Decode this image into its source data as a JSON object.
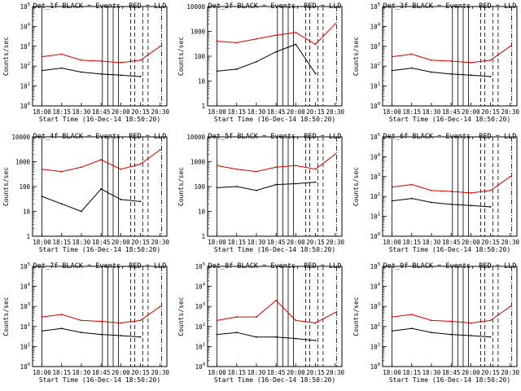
{
  "figure": {
    "date": "16-Dec-14",
    "reference_time": "18:50:20",
    "xlabel_prefix": "Start Time",
    "ylabel": "Counts/sec",
    "x_ticks": [
      "18:00",
      "18:15",
      "18:30",
      "18:45",
      "20:00",
      "20:15",
      "20:30"
    ],
    "colors": {
      "events": "#000000",
      "lld": "#d40000",
      "axes": "#000000",
      "background": "#ffffff"
    },
    "vertical_markers": {
      "solid_at_fraction": [
        0.07,
        0.52,
        0.56,
        0.6,
        0.64
      ],
      "dashed_at_fraction": [
        0.73,
        0.76,
        0.82,
        0.86
      ],
      "dashdot_at_fraction": [
        0.96
      ]
    }
  },
  "chart_data": [
    {
      "type": "line",
      "panel": "Det_1f",
      "title": "Det_1f BLACK = Events, RED = LLD",
      "xlabel": "Start Time (16-Dec-14 18:50:20)",
      "ylabel": "Counts/sec",
      "yscale": "log",
      "ylim": [
        1,
        100000
      ],
      "ytick_style": "power",
      "x": [
        "18:00",
        "18:15",
        "18:30",
        "18:45",
        "20:00",
        "20:15",
        "20:30"
      ],
      "series": [
        {
          "name": "BLACK = Events",
          "color": "#000000",
          "values": [
            60,
            80,
            50,
            40,
            35,
            30,
            null
          ]
        },
        {
          "name": "RED = LLD",
          "color": "#d40000",
          "values": [
            300,
            400,
            200,
            180,
            150,
            200,
            1000
          ]
        }
      ]
    },
    {
      "type": "line",
      "panel": "Det_2f",
      "title": "Det_2f BLACK = Events, RED = LLD",
      "xlabel": "Start Time (16-Dec-14 18:50:20)",
      "ylabel": "Counts/sec",
      "yscale": "log",
      "ylim": [
        1,
        10000
      ],
      "ytick_style": "plain",
      "x": [
        "18:00",
        "18:15",
        "18:30",
        "18:45",
        "20:00",
        "20:15",
        "20:30"
      ],
      "series": [
        {
          "name": "BLACK = Events",
          "color": "#000000",
          "values": [
            25,
            30,
            60,
            150,
            300,
            20,
            null
          ]
        },
        {
          "name": "RED = LLD",
          "color": "#d40000",
          "values": [
            400,
            350,
            500,
            700,
            900,
            300,
            2000
          ]
        }
      ]
    },
    {
      "type": "line",
      "panel": "Det_3f",
      "title": "Det_3f BLACK = Events, RED = LLD",
      "xlabel": "Start Time (16-Dec-14 18:50:20)",
      "ylabel": "Counts/sec",
      "yscale": "log",
      "ylim": [
        1,
        100000
      ],
      "ytick_style": "power",
      "x": [
        "18:00",
        "18:15",
        "18:30",
        "18:45",
        "20:00",
        "20:15",
        "20:30"
      ],
      "series": [
        {
          "name": "BLACK = Events",
          "color": "#000000",
          "values": [
            60,
            80,
            50,
            40,
            35,
            30,
            null
          ]
        },
        {
          "name": "RED = LLD",
          "color": "#d40000",
          "values": [
            300,
            400,
            200,
            180,
            150,
            200,
            1000
          ]
        }
      ]
    },
    {
      "type": "line",
      "panel": "Det_4f",
      "title": "Det_4f BLACK = Events, RED = LLD",
      "xlabel": "Start Time (16-Dec-14 18:50:20)",
      "ylabel": "Counts/sec",
      "yscale": "log",
      "ylim": [
        1,
        10000
      ],
      "ytick_style": "plain",
      "x": [
        "18:00",
        "18:15",
        "18:30",
        "18:45",
        "20:00",
        "20:15",
        "20:30"
      ],
      "series": [
        {
          "name": "BLACK = Events",
          "color": "#000000",
          "values": [
            40,
            20,
            10,
            80,
            30,
            25,
            null
          ]
        },
        {
          "name": "RED = LLD",
          "color": "#d40000",
          "values": [
            500,
            400,
            600,
            1200,
            500,
            800,
            3000
          ]
        }
      ]
    },
    {
      "type": "line",
      "panel": "Det_5f",
      "title": "Det_5f BLACK = Events, RED = LLD",
      "xlabel": "Start Time (16-Dec-14 18:50:20)",
      "ylabel": "Counts/sec",
      "yscale": "log",
      "ylim": [
        1,
        10000
      ],
      "ytick_style": "plain",
      "x": [
        "18:00",
        "18:15",
        "18:30",
        "18:45",
        "20:00",
        "20:15",
        "20:30"
      ],
      "series": [
        {
          "name": "BLACK = Events",
          "color": "#000000",
          "values": [
            90,
            100,
            70,
            120,
            130,
            150,
            null
          ]
        },
        {
          "name": "RED = LLD",
          "color": "#d40000",
          "values": [
            700,
            500,
            400,
            600,
            700,
            500,
            2000
          ]
        }
      ]
    },
    {
      "type": "line",
      "panel": "Det_6f",
      "title": "Det_6f BLACK = Events, RED = LLD",
      "xlabel": "Start Time (16-Dec-14 18:50:20)",
      "ylabel": "Counts/sec",
      "yscale": "log",
      "ylim": [
        1,
        100000
      ],
      "ytick_style": "power",
      "x": [
        "18:00",
        "18:15",
        "18:30",
        "18:45",
        "20:00",
        "20:15",
        "20:30"
      ],
      "series": [
        {
          "name": "BLACK = Events",
          "color": "#000000",
          "values": [
            60,
            80,
            50,
            40,
            35,
            30,
            null
          ]
        },
        {
          "name": "RED = LLD",
          "color": "#d40000",
          "values": [
            300,
            400,
            200,
            180,
            150,
            200,
            1000
          ]
        }
      ]
    },
    {
      "type": "line",
      "panel": "Det_7f",
      "title": "Det_7f BLACK = Events, RED = LLD",
      "xlabel": "Start Time (16-Dec-14 18:50:20)",
      "ylabel": "Counts/sec",
      "yscale": "log",
      "ylim": [
        1,
        100000
      ],
      "ytick_style": "power",
      "x": [
        "18:00",
        "18:15",
        "18:30",
        "18:45",
        "20:00",
        "20:15",
        "20:30"
      ],
      "series": [
        {
          "name": "BLACK = Events",
          "color": "#000000",
          "values": [
            60,
            80,
            50,
            40,
            35,
            30,
            null
          ]
        },
        {
          "name": "RED = LLD",
          "color": "#d40000",
          "values": [
            300,
            400,
            200,
            180,
            150,
            200,
            1000
          ]
        }
      ]
    },
    {
      "type": "line",
      "panel": "Det_8f",
      "title": "Det_8f BLACK = Events, RED = LLD",
      "xlabel": "Start Time (16-Dec-14 18:50:20)",
      "ylabel": "Counts/sec",
      "yscale": "log",
      "ylim": [
        1,
        100000
      ],
      "ytick_style": "power",
      "x": [
        "18:00",
        "18:15",
        "18:30",
        "18:45",
        "20:00",
        "20:15",
        "20:30"
      ],
      "series": [
        {
          "name": "BLACK = Events",
          "color": "#000000",
          "values": [
            40,
            50,
            30,
            30,
            25,
            20,
            null
          ]
        },
        {
          "name": "RED = LLD",
          "color": "#d40000",
          "values": [
            200,
            300,
            300,
            2000,
            200,
            150,
            500
          ]
        }
      ]
    },
    {
      "type": "line",
      "panel": "Det_9f",
      "title": "Det_9f BLACK = Events, RED = LLD",
      "xlabel": "Start Time (16-Dec-14 18:50:20)",
      "ylabel": "Counts/sec",
      "yscale": "log",
      "ylim": [
        1,
        100000
      ],
      "ytick_style": "power",
      "x": [
        "18:00",
        "18:15",
        "18:30",
        "18:45",
        "20:00",
        "20:15",
        "20:30"
      ],
      "series": [
        {
          "name": "BLACK = Events",
          "color": "#000000",
          "values": [
            60,
            80,
            50,
            40,
            35,
            30,
            null
          ]
        },
        {
          "name": "RED = LLD",
          "color": "#d40000",
          "values": [
            300,
            400,
            200,
            180,
            150,
            200,
            1000
          ]
        }
      ]
    }
  ]
}
